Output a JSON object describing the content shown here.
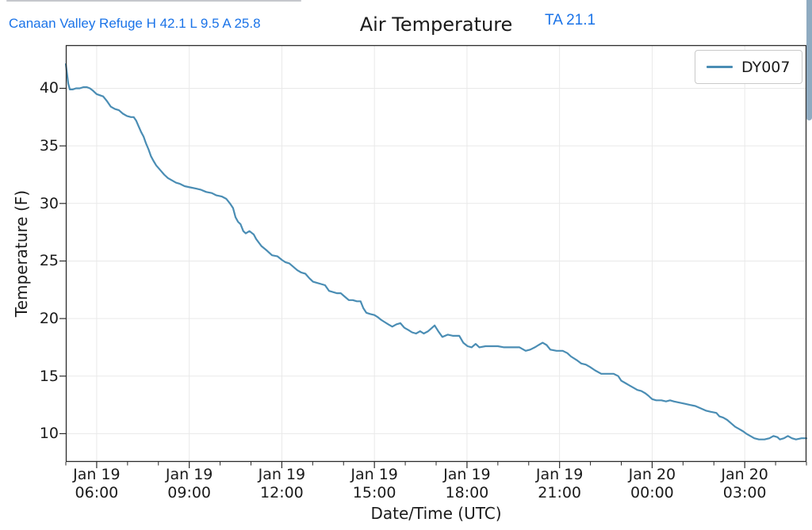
{
  "page": {
    "header": {
      "station_summary": "Canaan Valley Refuge H 42.1 L 9.5 A 25.8",
      "current_reading": "TA 21.1"
    },
    "colors": {
      "header_accent": "#1a73e8",
      "line": "#4a8db4",
      "spine": "#2b2b2b",
      "gridline": "#e9e9e9",
      "scrollbar": "#8fabc1"
    }
  },
  "chart_data": {
    "type": "line",
    "title": "Air Temperature",
    "xlabel": "Date/Time (UTC)",
    "ylabel": "Temperature (F)",
    "grid": true,
    "legend": {
      "position": "upper right",
      "entries": [
        "DY007"
      ]
    },
    "stats": {
      "high": 42.1,
      "low": 9.5,
      "average": 25.8
    },
    "ylim": [
      7.55,
      43.75
    ],
    "y_ticks": [
      10,
      15,
      20,
      25,
      30,
      35,
      40
    ],
    "x_range_hours": [
      0,
      24
    ],
    "x_minor_every_hours": 1,
    "x_ticks": [
      {
        "hour": 1,
        "date": "Jan 19",
        "time": "06:00"
      },
      {
        "hour": 4,
        "date": "Jan 19",
        "time": "09:00"
      },
      {
        "hour": 7,
        "date": "Jan 19",
        "time": "12:00"
      },
      {
        "hour": 10,
        "date": "Jan 19",
        "time": "15:00"
      },
      {
        "hour": 13,
        "date": "Jan 19",
        "time": "18:00"
      },
      {
        "hour": 16,
        "date": "Jan 19",
        "time": "21:00"
      },
      {
        "hour": 19,
        "date": "Jan 20",
        "time": "00:00"
      },
      {
        "hour": 22,
        "date": "Jan 20",
        "time": "03:00"
      }
    ],
    "series": [
      {
        "name": "DY007",
        "color": "#4a8db4",
        "points_hour_tempF": [
          [
            0.0,
            42.1
          ],
          [
            0.08,
            40.4
          ],
          [
            0.13,
            39.9
          ],
          [
            0.22,
            39.9
          ],
          [
            0.33,
            40.0
          ],
          [
            0.45,
            40.0
          ],
          [
            0.57,
            40.1
          ],
          [
            0.68,
            40.1
          ],
          [
            0.78,
            40.0
          ],
          [
            0.88,
            39.8
          ],
          [
            1.0,
            39.5
          ],
          [
            1.1,
            39.4
          ],
          [
            1.21,
            39.3
          ],
          [
            1.33,
            38.9
          ],
          [
            1.46,
            38.4
          ],
          [
            1.59,
            38.2
          ],
          [
            1.72,
            38.1
          ],
          [
            1.85,
            37.8
          ],
          [
            1.98,
            37.6
          ],
          [
            2.11,
            37.5
          ],
          [
            2.2,
            37.5
          ],
          [
            2.28,
            37.2
          ],
          [
            2.36,
            36.7
          ],
          [
            2.44,
            36.2
          ],
          [
            2.52,
            35.8
          ],
          [
            2.6,
            35.2
          ],
          [
            2.68,
            34.7
          ],
          [
            2.76,
            34.1
          ],
          [
            2.84,
            33.7
          ],
          [
            2.93,
            33.3
          ],
          [
            3.06,
            32.9
          ],
          [
            3.19,
            32.5
          ],
          [
            3.31,
            32.2
          ],
          [
            3.44,
            32.0
          ],
          [
            3.57,
            31.8
          ],
          [
            3.7,
            31.7
          ],
          [
            3.85,
            31.5
          ],
          [
            4.03,
            31.4
          ],
          [
            4.21,
            31.3
          ],
          [
            4.37,
            31.2
          ],
          [
            4.55,
            31.0
          ],
          [
            4.73,
            30.9
          ],
          [
            4.88,
            30.7
          ],
          [
            5.06,
            30.6
          ],
          [
            5.2,
            30.4
          ],
          [
            5.32,
            30.0
          ],
          [
            5.42,
            29.6
          ],
          [
            5.5,
            28.8
          ],
          [
            5.58,
            28.4
          ],
          [
            5.66,
            28.2
          ],
          [
            5.75,
            27.6
          ],
          [
            5.83,
            27.4
          ],
          [
            5.95,
            27.6
          ],
          [
            6.09,
            27.3
          ],
          [
            6.17,
            26.9
          ],
          [
            6.34,
            26.3
          ],
          [
            6.52,
            25.9
          ],
          [
            6.68,
            25.5
          ],
          [
            6.86,
            25.4
          ],
          [
            7.0,
            25.1
          ],
          [
            7.11,
            24.9
          ],
          [
            7.24,
            24.8
          ],
          [
            7.37,
            24.5
          ],
          [
            7.5,
            24.2
          ],
          [
            7.63,
            24.0
          ],
          [
            7.76,
            23.9
          ],
          [
            7.89,
            23.5
          ],
          [
            8.01,
            23.2
          ],
          [
            8.14,
            23.1
          ],
          [
            8.27,
            23.0
          ],
          [
            8.4,
            22.9
          ],
          [
            8.53,
            22.4
          ],
          [
            8.66,
            22.3
          ],
          [
            8.78,
            22.2
          ],
          [
            8.91,
            22.2
          ],
          [
            9.04,
            21.9
          ],
          [
            9.17,
            21.6
          ],
          [
            9.3,
            21.6
          ],
          [
            9.43,
            21.5
          ],
          [
            9.55,
            21.5
          ],
          [
            9.64,
            20.9
          ],
          [
            9.74,
            20.5
          ],
          [
            9.86,
            20.4
          ],
          [
            10.0,
            20.3
          ],
          [
            10.12,
            20.1
          ],
          [
            10.21,
            19.9
          ],
          [
            10.33,
            19.7
          ],
          [
            10.45,
            19.5
          ],
          [
            10.58,
            19.3
          ],
          [
            10.71,
            19.5
          ],
          [
            10.84,
            19.6
          ],
          [
            10.97,
            19.2
          ],
          [
            11.1,
            19.0
          ],
          [
            11.22,
            18.8
          ],
          [
            11.35,
            18.7
          ],
          [
            11.48,
            18.9
          ],
          [
            11.6,
            18.7
          ],
          [
            11.74,
            18.9
          ],
          [
            11.87,
            19.2
          ],
          [
            11.95,
            19.4
          ],
          [
            12.07,
            18.9
          ],
          [
            12.2,
            18.4
          ],
          [
            12.38,
            18.6
          ],
          [
            12.55,
            18.5
          ],
          [
            12.75,
            18.5
          ],
          [
            12.88,
            17.9
          ],
          [
            13.02,
            17.6
          ],
          [
            13.15,
            17.5
          ],
          [
            13.28,
            17.8
          ],
          [
            13.4,
            17.5
          ],
          [
            13.6,
            17.6
          ],
          [
            13.8,
            17.6
          ],
          [
            14.0,
            17.6
          ],
          [
            14.2,
            17.5
          ],
          [
            14.45,
            17.5
          ],
          [
            14.7,
            17.5
          ],
          [
            14.9,
            17.2
          ],
          [
            15.05,
            17.3
          ],
          [
            15.2,
            17.5
          ],
          [
            15.32,
            17.7
          ],
          [
            15.45,
            17.9
          ],
          [
            15.58,
            17.7
          ],
          [
            15.7,
            17.3
          ],
          [
            15.9,
            17.2
          ],
          [
            16.1,
            17.2
          ],
          [
            16.25,
            17.0
          ],
          [
            16.37,
            16.7
          ],
          [
            16.55,
            16.4
          ],
          [
            16.7,
            16.1
          ],
          [
            16.85,
            16.0
          ],
          [
            16.98,
            15.8
          ],
          [
            17.15,
            15.5
          ],
          [
            17.35,
            15.2
          ],
          [
            17.55,
            15.2
          ],
          [
            17.75,
            15.2
          ],
          [
            17.9,
            15.0
          ],
          [
            18.0,
            14.6
          ],
          [
            18.13,
            14.4
          ],
          [
            18.26,
            14.2
          ],
          [
            18.39,
            14.0
          ],
          [
            18.52,
            13.8
          ],
          [
            18.65,
            13.7
          ],
          [
            18.78,
            13.5
          ],
          [
            18.88,
            13.3
          ],
          [
            19.0,
            13.0
          ],
          [
            19.13,
            12.9
          ],
          [
            19.3,
            12.9
          ],
          [
            19.45,
            12.8
          ],
          [
            19.58,
            12.9
          ],
          [
            19.7,
            12.8
          ],
          [
            19.88,
            12.7
          ],
          [
            20.05,
            12.6
          ],
          [
            20.22,
            12.5
          ],
          [
            20.4,
            12.4
          ],
          [
            20.57,
            12.2
          ],
          [
            20.74,
            12.0
          ],
          [
            20.9,
            11.9
          ],
          [
            21.08,
            11.8
          ],
          [
            21.18,
            11.5
          ],
          [
            21.3,
            11.4
          ],
          [
            21.43,
            11.2
          ],
          [
            21.56,
            10.9
          ],
          [
            21.69,
            10.6
          ],
          [
            21.82,
            10.4
          ],
          [
            21.95,
            10.2
          ],
          [
            22.05,
            10.0
          ],
          [
            22.18,
            9.8
          ],
          [
            22.31,
            9.6
          ],
          [
            22.46,
            9.5
          ],
          [
            22.64,
            9.5
          ],
          [
            22.8,
            9.6
          ],
          [
            22.93,
            9.8
          ],
          [
            23.06,
            9.7
          ],
          [
            23.14,
            9.5
          ],
          [
            23.27,
            9.6
          ],
          [
            23.4,
            9.8
          ],
          [
            23.53,
            9.6
          ],
          [
            23.66,
            9.5
          ],
          [
            23.84,
            9.6
          ],
          [
            24.0,
            9.6
          ]
        ]
      }
    ]
  }
}
